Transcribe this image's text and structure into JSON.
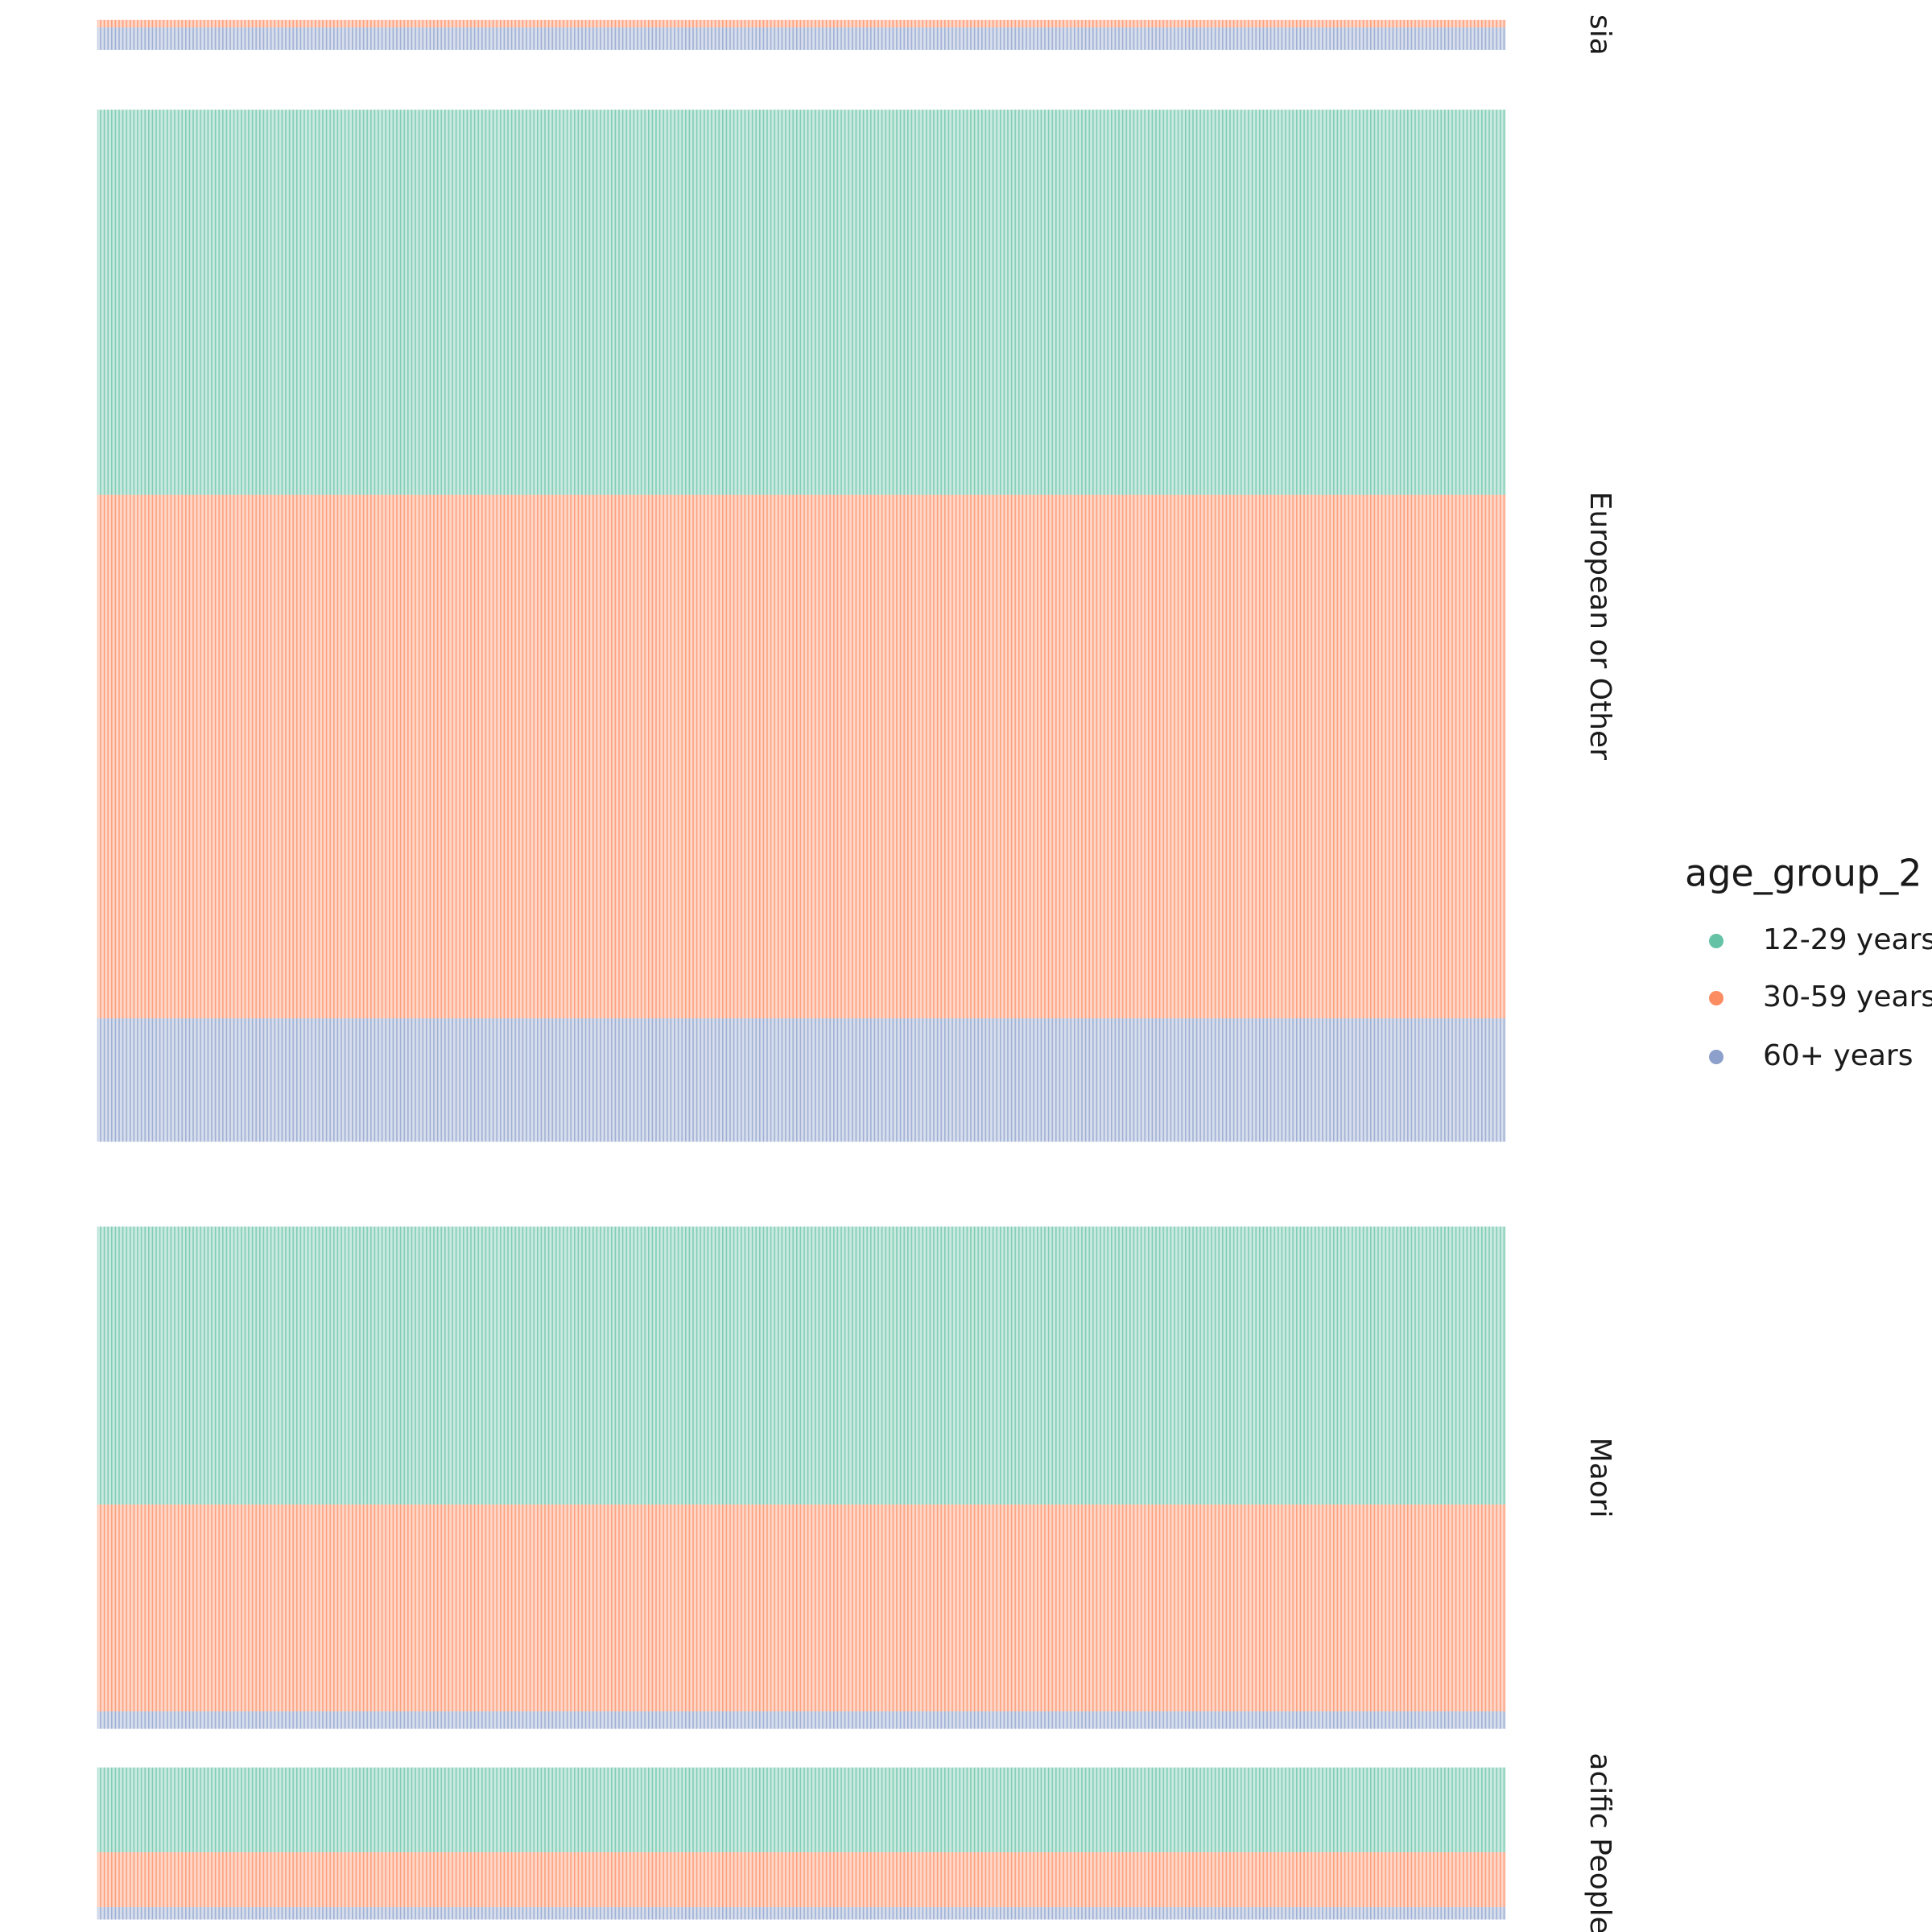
{
  "chart_data": {
    "type": "bar",
    "stacked": true,
    "legend_title": "age_group_2",
    "categories": [
      "sia",
      "European or Other",
      "Maori",
      "acific People"
    ],
    "series": [
      {
        "name": "12-29 years",
        "color": "#66c2a5",
        "values": [
          0,
          309,
          223,
          68
        ]
      },
      {
        "name": "30-59 years",
        "color": "#fc8d62",
        "values": [
          6,
          420,
          166,
          44
        ]
      },
      {
        "name": "60+ years",
        "color": "#8da0cb",
        "values": [
          18,
          99,
          14,
          10
        ]
      }
    ]
  }
}
